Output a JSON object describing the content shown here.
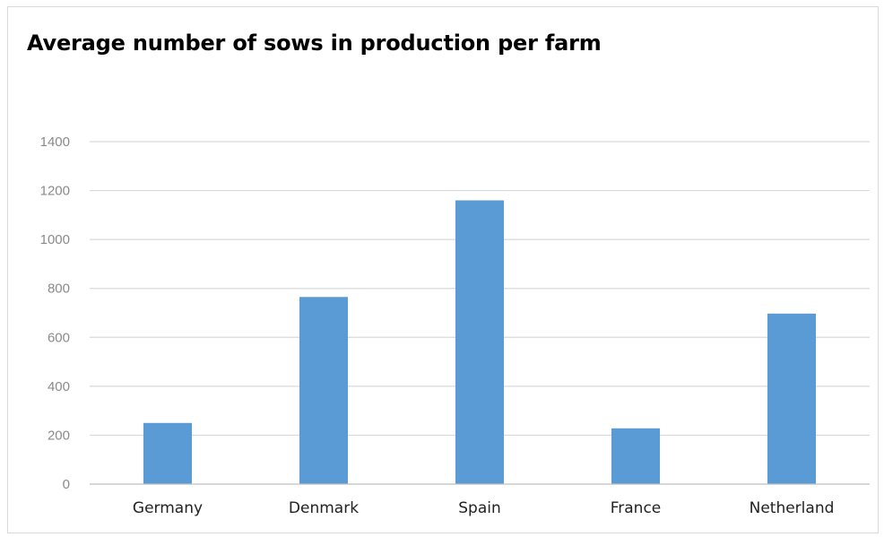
{
  "chart_data": {
    "type": "bar",
    "title": "Average number of sows in production per farm",
    "categories": [
      "Germany",
      "Denmark",
      "Spain",
      "France",
      "Netherland"
    ],
    "values": [
      250,
      765,
      1160,
      228,
      697
    ],
    "ylim": [
      0,
      1400
    ],
    "yticks": [
      0,
      200,
      400,
      600,
      800,
      1000,
      1200,
      1400
    ],
    "grid": true,
    "legend": "none",
    "xlabel": "",
    "ylabel": "",
    "colors": {
      "bar": "#5b9bd5",
      "grid": "#d9d9d9",
      "axis": "#bfbfbf"
    }
  }
}
